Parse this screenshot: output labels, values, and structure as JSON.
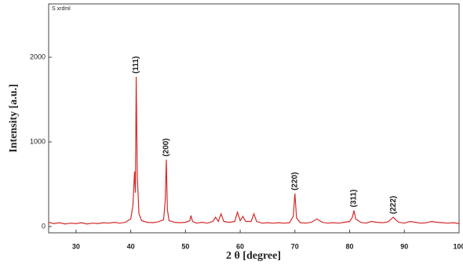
{
  "chart_data": {
    "type": "line",
    "corner_label": "S xrdml",
    "xlabel": "2 θ [degree]",
    "ylabel": "Intensity [a.u.]",
    "xlim": [
      25,
      100
    ],
    "ylim": [
      -74,
      2630
    ],
    "xticks": [
      30,
      40,
      50,
      60,
      70,
      80,
      90,
      100
    ],
    "yticks": [
      0,
      1000,
      2000
    ],
    "x": [
      25,
      26,
      27,
      28,
      29,
      30,
      31,
      32,
      33,
      34,
      35,
      36,
      37,
      38,
      39,
      40,
      40.4,
      40.7,
      40.85,
      41.0,
      41.2,
      41.5,
      42,
      43,
      44,
      45,
      46,
      46.3,
      46.5,
      46.7,
      47,
      48,
      49,
      50,
      50.8,
      51,
      51.3,
      52,
      53,
      54,
      55,
      55.5,
      56,
      56.5,
      57,
      58,
      59,
      59.5,
      60,
      60.5,
      61,
      62,
      62.5,
      63,
      64,
      65,
      66,
      67,
      68,
      69,
      69.7,
      70,
      70.3,
      71,
      72,
      73,
      74,
      75,
      76,
      77,
      78,
      79,
      80,
      80.5,
      80.8,
      81.1,
      82,
      83,
      84,
      85,
      86,
      87,
      87.6,
      88,
      88.4,
      89,
      90,
      91,
      92,
      93,
      94,
      95,
      96,
      97,
      98,
      99,
      100
    ],
    "series": [
      {
        "color": "#d42a2a",
        "values": [
          50,
          35,
          45,
          30,
          40,
          35,
          45,
          30,
          40,
          35,
          45,
          40,
          50,
          40,
          50,
          90,
          250,
          650,
          400,
          1770,
          600,
          150,
          70,
          50,
          45,
          55,
          80,
          300,
          790,
          200,
          70,
          50,
          45,
          50,
          70,
          130,
          60,
          40,
          50,
          40,
          60,
          110,
          60,
          150,
          60,
          50,
          60,
          170,
          70,
          120,
          60,
          60,
          150,
          60,
          40,
          45,
          40,
          45,
          40,
          45,
          120,
          390,
          100,
          45,
          40,
          50,
          90,
          50,
          40,
          45,
          40,
          50,
          60,
          110,
          190,
          90,
          50,
          40,
          60,
          50,
          45,
          55,
          90,
          110,
          80,
          50,
          40,
          60,
          50,
          40,
          45,
          60,
          50,
          45,
          40,
          45,
          35
        ]
      }
    ],
    "annotations": [
      {
        "label": "(111)",
        "x": 41.0,
        "y": 1770
      },
      {
        "label": "(200)",
        "x": 46.5,
        "y": 790
      },
      {
        "label": "(220)",
        "x": 70,
        "y": 390
      },
      {
        "label": "(311)",
        "x": 80.8,
        "y": 190
      },
      {
        "label": "(222)",
        "x": 88,
        "y": 110
      }
    ]
  }
}
